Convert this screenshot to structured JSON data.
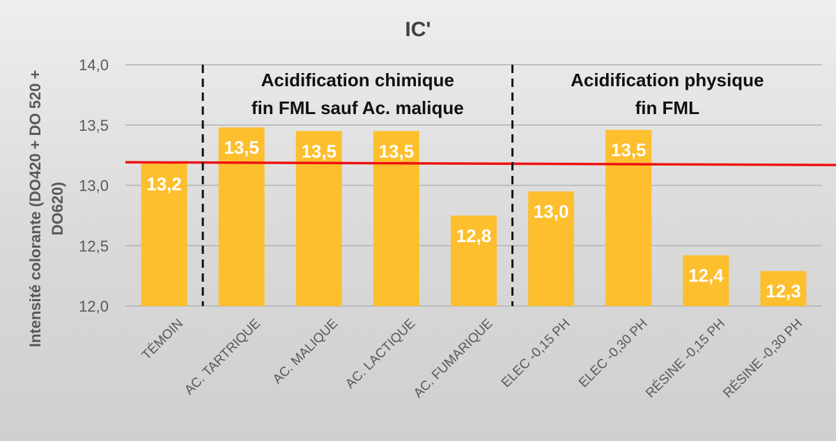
{
  "chart_data": {
    "type": "bar",
    "title": "IC'",
    "ylabel": "Intensité colorante (DO420 + DO 520 + DO620)",
    "xlabel": "",
    "ylim": [
      12.0,
      14.0
    ],
    "ytick_step": 0.5,
    "ytick_labels": [
      "12,0",
      "12,5",
      "13,0",
      "13,5",
      "14,0"
    ],
    "grid": true,
    "categories": [
      "TÉMOIN",
      "AC. TARTRIQUE",
      "AC. MALIQUE",
      "AC. LACTIQUE",
      "AC. FUMARIQUE",
      "ELEC -0,15 PH",
      "ELEC -0,30 PH",
      "RÉSINE -0,15 PH",
      "RÉSINE -0,30 PH"
    ],
    "values": [
      13.18,
      13.48,
      13.45,
      13.45,
      12.75,
      12.95,
      13.46,
      12.42,
      12.29
    ],
    "data_labels": [
      "13,2",
      "13,5",
      "13,5",
      "13,5",
      "12,8",
      "13,0",
      "13,5",
      "12,4",
      "12,3"
    ],
    "reference_line": {
      "value": 13.18,
      "color": "#ee1111"
    },
    "separators_after_index": [
      0,
      4
    ],
    "group_labels": [
      {
        "lines": [
          "Acidification chimique",
          "fin FML sauf Ac. malique"
        ],
        "from_index": 1,
        "to_index": 4
      },
      {
        "lines": [
          "Acidification physique",
          "fin FML"
        ],
        "from_index": 5,
        "to_index": 8
      }
    ],
    "bar_color": "#fdbf2d",
    "data_label_color": "#ffffff"
  }
}
